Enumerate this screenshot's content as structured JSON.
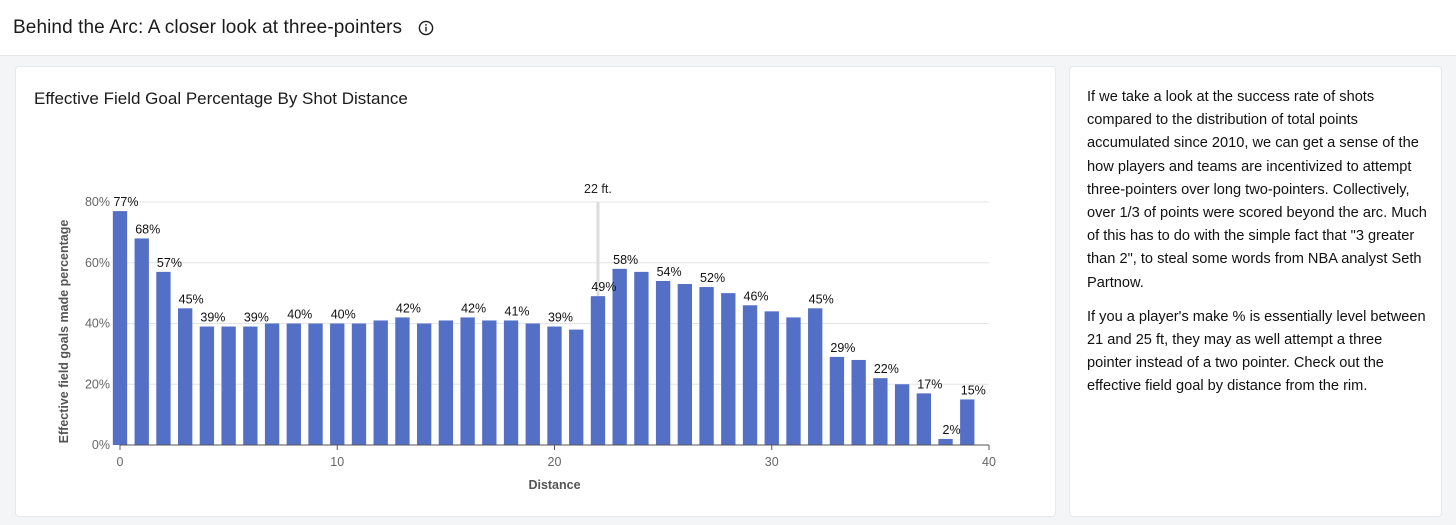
{
  "header": {
    "title": "Behind the Arc: A closer look at three-pointers",
    "info_icon": "info-icon"
  },
  "chart_card": {
    "title": "Effective Field Goal Percentage By Shot Distance"
  },
  "chart_data": {
    "type": "bar",
    "title": "Effective Field Goal Percentage By Shot Distance",
    "xlabel": "Distance",
    "ylabel": "Effective field goals made percentage",
    "xlim": [
      0,
      40
    ],
    "ylim": [
      0,
      80
    ],
    "xticks": [
      0,
      10,
      20,
      30,
      40
    ],
    "yticks": [
      0,
      20,
      40,
      60,
      80
    ],
    "ytick_labels": [
      "0%",
      "20%",
      "40%",
      "60%",
      "80%"
    ],
    "bar_color": "#5470c6",
    "x": [
      0,
      1,
      2,
      3,
      4,
      5,
      6,
      7,
      8,
      9,
      10,
      11,
      12,
      13,
      14,
      15,
      16,
      17,
      18,
      19,
      20,
      21,
      22,
      23,
      24,
      25,
      26,
      27,
      28,
      29,
      30,
      31,
      32,
      33,
      34,
      35,
      36,
      37,
      38,
      39
    ],
    "values": [
      77,
      68,
      57,
      45,
      39,
      39,
      39,
      40,
      40,
      40,
      40,
      40,
      41,
      42,
      40,
      41,
      42,
      41,
      41,
      40,
      39,
      38,
      49,
      58,
      57,
      54,
      53,
      52,
      50,
      46,
      44,
      42,
      45,
      29,
      28,
      22,
      20,
      17,
      2,
      15
    ],
    "labeled_points": [
      {
        "x": 0,
        "label": "77%"
      },
      {
        "x": 1,
        "label": "68%"
      },
      {
        "x": 2,
        "label": "57%"
      },
      {
        "x": 3,
        "label": "45%"
      },
      {
        "x": 4,
        "label": "39%"
      },
      {
        "x": 6,
        "label": "39%"
      },
      {
        "x": 8,
        "label": "40%"
      },
      {
        "x": 10,
        "label": "40%"
      },
      {
        "x": 13,
        "label": "42%"
      },
      {
        "x": 16,
        "label": "42%"
      },
      {
        "x": 18,
        "label": "41%"
      },
      {
        "x": 20,
        "label": "39%"
      },
      {
        "x": 22,
        "label": "49%"
      },
      {
        "x": 23,
        "label": "58%"
      },
      {
        "x": 25,
        "label": "54%"
      },
      {
        "x": 27,
        "label": "52%"
      },
      {
        "x": 29,
        "label": "46%"
      },
      {
        "x": 32,
        "label": "45%"
      },
      {
        "x": 33,
        "label": "29%"
      },
      {
        "x": 35,
        "label": "22%"
      },
      {
        "x": 37,
        "label": "17%"
      },
      {
        "x": 38,
        "label": "2%"
      },
      {
        "x": 39,
        "label": "15%"
      }
    ],
    "reference_line": {
      "x": 22,
      "label": "22 ft.",
      "color": "#dcdcdc"
    },
    "grid": true
  },
  "description": {
    "paragraphs": [
      "If we take a look at the success rate of shots compared to the distribution of total points accumulated since 2010, we can get a sense of the how players and teams are incentivized to attempt three-pointers over long two-pointers. Collectively, over 1/3 of points were scored beyond the arc. Much of this has to do with the simple fact that \"3 greater than 2\", to steal some words from NBA analyst Seth Partnow.",
      "If you a player's make % is essentially level between 21 and 25 ft, they may as well attempt a three pointer instead of a two pointer. Check out the effective field goal by distance from the rim."
    ]
  }
}
